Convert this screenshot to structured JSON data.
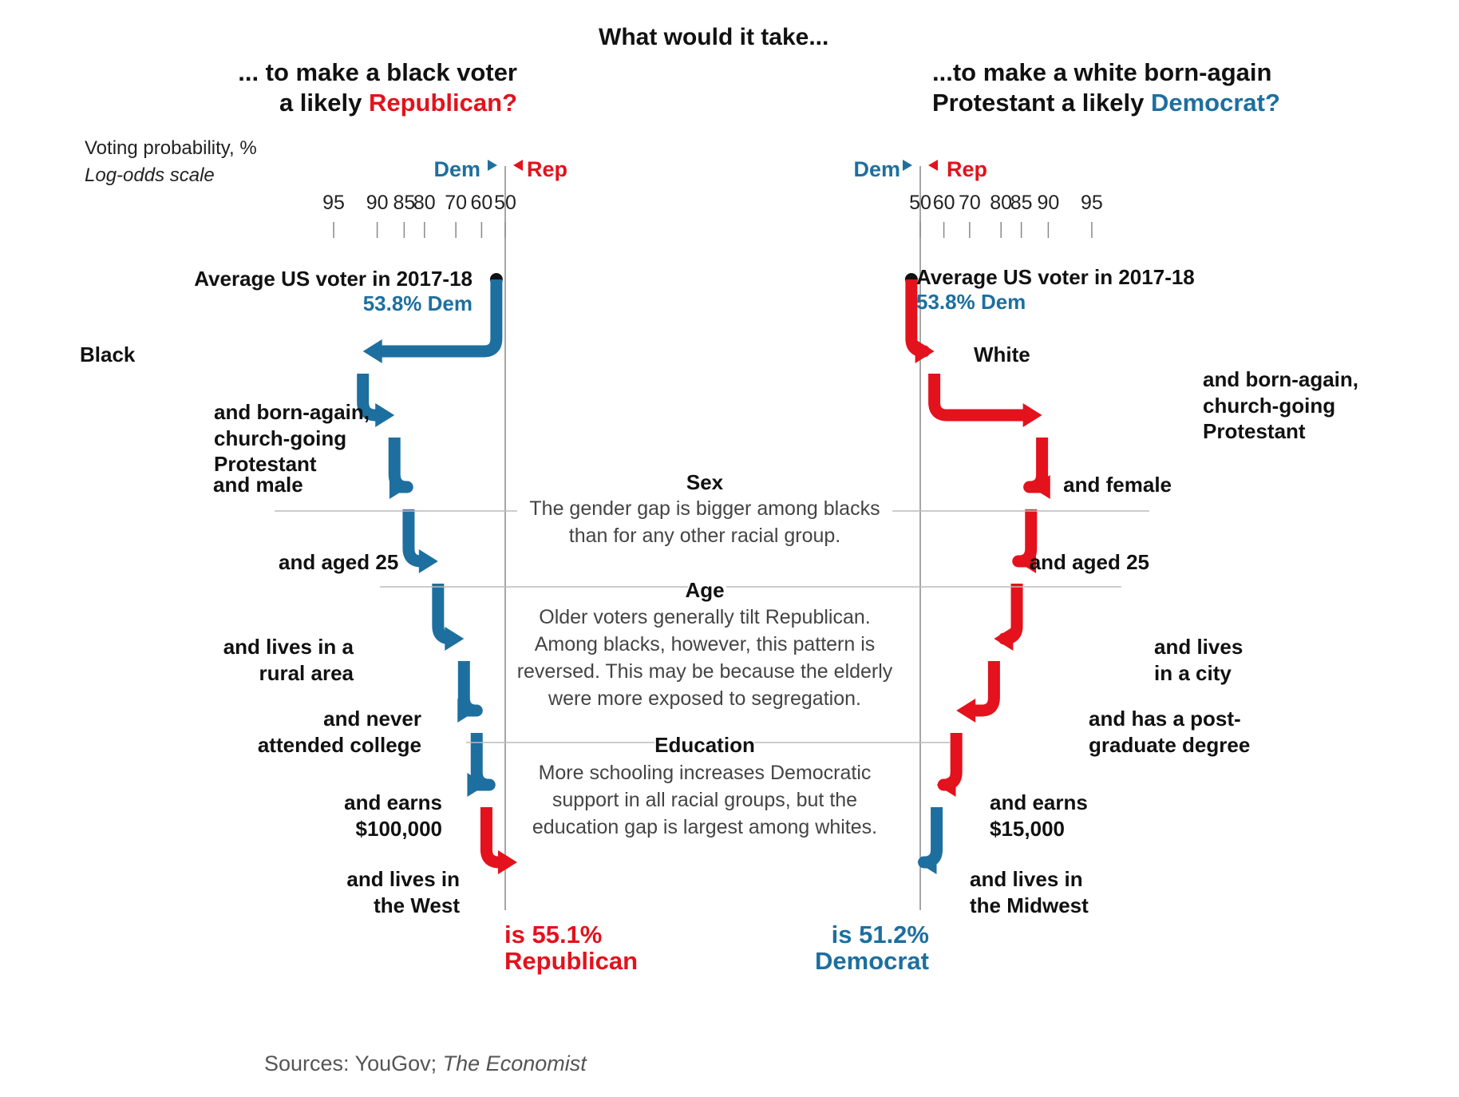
{
  "title": "What would it take...",
  "left": {
    "heading_1": "... to make a black voter",
    "heading_2a": "a likely ",
    "heading_2b": "Republican?",
    "dem_tag": "Dem",
    "rep_tag": "Rep",
    "start_label": "Average US voter in 2017-18",
    "start_value": "53.8% Dem",
    "result_1": "is 55.1%",
    "result_2": "Republican"
  },
  "right": {
    "heading_1": "...to make a white born-again",
    "heading_2a": "Protestant a likely ",
    "heading_2b": "Democrat?",
    "dem_tag": "Dem",
    "rep_tag": "Rep",
    "start_label": "Average US voter in 2017-18",
    "start_value": "53.8% Dem",
    "result_1": "is 51.2%",
    "result_2": "Democrat"
  },
  "axis": {
    "title": "Voting probability, %",
    "subtitle": "Log-odds scale"
  },
  "notes": {
    "sex_head": "Sex",
    "sex_1": "The gender gap is bigger among blacks",
    "sex_2": "than for any other racial group.",
    "age_head": "Age",
    "age_1": "Older voters generally tilt Republican.",
    "age_2": "Among blacks, however, this pattern is",
    "age_3": "reversed. This may be because the elderly",
    "age_4": "were more exposed to segregation.",
    "edu_head": "Education",
    "edu_1": "More schooling increases Democratic",
    "edu_2": "support in all racial groups, but the",
    "edu_3": "education gap is largest among whites."
  },
  "source_1": "Sources: YouGov; ",
  "source_2": "The Economist",
  "colors": {
    "dem": "#1d6f9f",
    "rep": "#e3121c",
    "axis": "#888888",
    "guide": "#bbbbbb"
  },
  "chart_data": [
    {
      "type": "line",
      "title": "... to make a black voter a likely Republican?",
      "xlabel": "Voting probability, %",
      "x_scale": "log-odds",
      "x_ticks": [
        {
          "label": "95",
          "side": "dem",
          "value": 95
        },
        {
          "label": "90",
          "side": "dem",
          "value": 90
        },
        {
          "label": "85",
          "side": "dem",
          "value": 85
        },
        {
          "label": "80",
          "side": "dem",
          "value": 80
        },
        {
          "label": "70",
          "side": "dem",
          "value": 70
        },
        {
          "label": "60",
          "side": "dem",
          "value": 60
        },
        {
          "label": "50",
          "side": "dem",
          "value": 50
        }
      ],
      "steps": [
        {
          "label": "Average US voter in 2017-18",
          "party": "dem",
          "value": 53.8
        },
        {
          "label": "Black",
          "party": "dem",
          "value": 92
        },
        {
          "label": "and born-again, church-going Protestant",
          "party": "dem",
          "value": 87
        },
        {
          "label": "and male",
          "party": "dem",
          "value": 84
        },
        {
          "label": "and aged 25",
          "party": "dem",
          "value": 76
        },
        {
          "label": "and lives in a rural area",
          "party": "dem",
          "value": 67
        },
        {
          "label": "and never attended college",
          "party": "dem",
          "value": 62
        },
        {
          "label": "and earns $100,000",
          "party": "dem",
          "value": 58
        },
        {
          "label": "and lives in the West",
          "party": "rep",
          "value": 55.1
        }
      ]
    },
    {
      "type": "line",
      "title": "...to make a white born-again Protestant a likely Democrat?",
      "xlabel": "Voting probability, %",
      "x_scale": "log-odds",
      "x_ticks": [
        {
          "label": "50",
          "side": "rep",
          "value": 50
        },
        {
          "label": "60",
          "side": "rep",
          "value": 60
        },
        {
          "label": "70",
          "side": "rep",
          "value": 70
        },
        {
          "label": "80",
          "side": "rep",
          "value": 80
        },
        {
          "label": "85",
          "side": "rep",
          "value": 85
        },
        {
          "label": "90",
          "side": "rep",
          "value": 90
        },
        {
          "label": "95",
          "side": "rep",
          "value": 95
        }
      ],
      "steps": [
        {
          "label": "Average US voter in 2017-18",
          "party": "dem",
          "value": 53.8
        },
        {
          "label": "White",
          "party": "rep",
          "value": 56
        },
        {
          "label": "and born-again, church-going Protestant",
          "party": "rep",
          "value": 89
        },
        {
          "label": "and female",
          "party": "rep",
          "value": 87
        },
        {
          "label": "and aged 25",
          "party": "rep",
          "value": 84
        },
        {
          "label": "and lives in a city",
          "party": "rep",
          "value": 78
        },
        {
          "label": "and has a post-graduate degree",
          "party": "rep",
          "value": 65
        },
        {
          "label": "and earns $15,000",
          "party": "rep",
          "value": 57
        },
        {
          "label": "and lives in the Midwest",
          "party": "dem",
          "value": 51.2
        }
      ]
    }
  ]
}
